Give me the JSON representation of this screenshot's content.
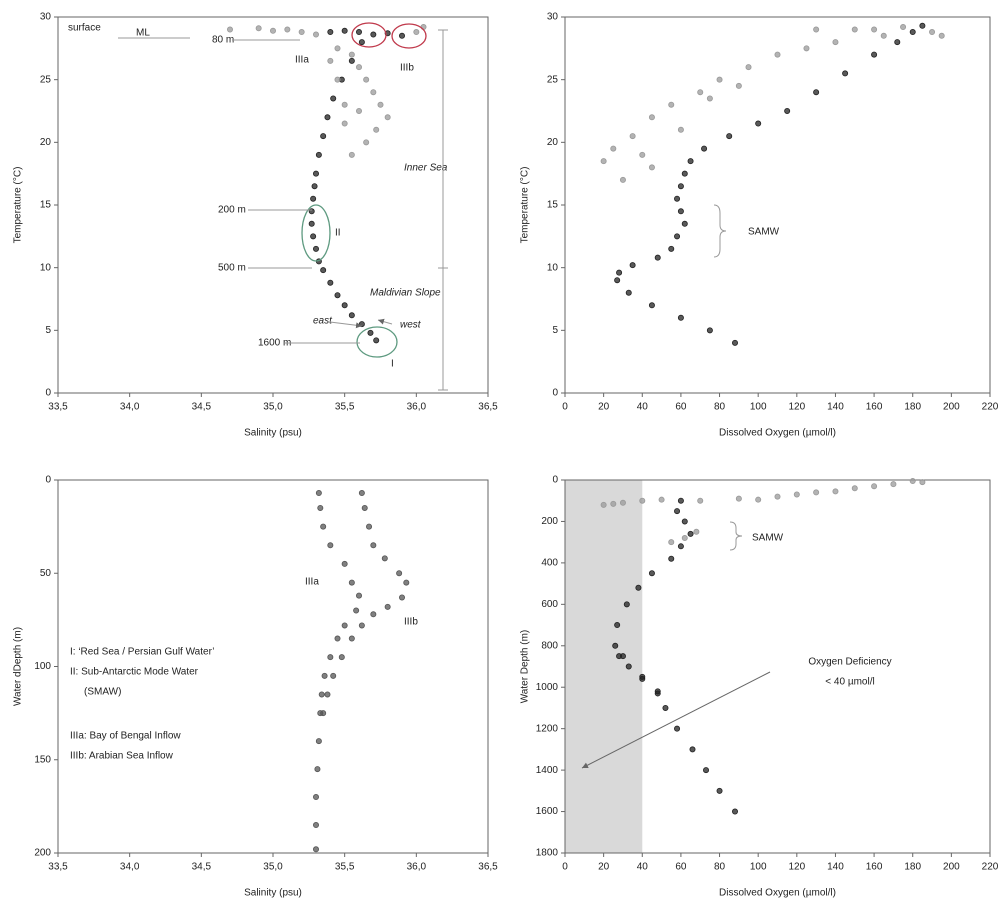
{
  "chart_data": [
    {
      "type": "scatter",
      "x_label": "Salinity (psu)",
      "y_label": "Temperature (°C)",
      "xlim": [
        33.5,
        36.5
      ],
      "ylim": [
        0,
        30
      ],
      "xticks": [
        {
          "value": 33.5,
          "label": "33,5"
        },
        {
          "value": 34,
          "label": "34,0"
        },
        {
          "value": 34.5,
          "label": "34,5"
        },
        {
          "value": 35,
          "label": "35,0"
        },
        {
          "value": 35.5,
          "label": "35,5"
        },
        {
          "value": 36,
          "label": "36,0"
        },
        {
          "value": 36.5,
          "label": "36,5"
        }
      ],
      "yticks": [
        0,
        5,
        10,
        15,
        20,
        25,
        30
      ],
      "y_inverted": false,
      "annotations": [
        "surface",
        "ML",
        "80 m",
        "IIIa",
        "IIIb",
        "Inner Sea",
        "200 m",
        "II",
        "500 m",
        "Maldivian Slope",
        "east",
        "west",
        "1600 m",
        "I"
      ],
      "series": [
        {
          "color": "#222222",
          "x": [
            35.72,
            35.68,
            35.62,
            35.55,
            35.5,
            35.45,
            35.4,
            35.35,
            35.32,
            35.3,
            35.28,
            35.27,
            35.27,
            35.28,
            35.29,
            35.3,
            35.32,
            35.35,
            35.38,
            35.42,
            35.48,
            35.55,
            35.62,
            35.4,
            35.5,
            35.6,
            35.7,
            35.8,
            35.9
          ],
          "y": [
            4.2,
            4.8,
            5.5,
            6.2,
            7,
            7.8,
            8.8,
            9.8,
            10.5,
            11.5,
            12.5,
            13.5,
            14.5,
            15.5,
            16.5,
            17.5,
            19,
            20.5,
            22,
            23.5,
            25,
            26.5,
            28,
            28.8,
            28.9,
            28.8,
            28.6,
            28.7,
            28.5
          ]
        },
        {
          "color": "#999999",
          "x": [
            34.7,
            34.9,
            35.0,
            35.1,
            35.2,
            35.3,
            35.45,
            35.55,
            35.6,
            35.65,
            35.7,
            35.75,
            35.8,
            35.72,
            35.65,
            35.55,
            35.5,
            35.45,
            35.4,
            35.6,
            35.5,
            36.0,
            36.05
          ],
          "y": [
            29,
            29.1,
            28.9,
            29,
            28.8,
            28.6,
            27.5,
            27,
            26,
            25,
            24,
            23,
            22,
            21,
            20,
            19,
            23,
            25,
            26.5,
            22.5,
            21.5,
            28.8,
            29.2
          ]
        }
      ]
    },
    {
      "type": "scatter",
      "x_label": "Dissolved Oxygen (µmol/l)",
      "y_label": "Temperature (°C)",
      "xlim": [
        0,
        220
      ],
      "ylim": [
        0,
        30
      ],
      "xticks": [
        0,
        20,
        40,
        60,
        80,
        100,
        120,
        140,
        160,
        180,
        200,
        220
      ],
      "yticks": [
        0,
        5,
        10,
        15,
        20,
        25,
        30
      ],
      "y_inverted": false,
      "annotations": [
        "SAMW"
      ],
      "series": [
        {
          "color": "#222222",
          "x": [
            88,
            75,
            60,
            45,
            33,
            27,
            28,
            35,
            48,
            55,
            58,
            62,
            60,
            58,
            60,
            62,
            65,
            72,
            85,
            100,
            115,
            130,
            145,
            160,
            172,
            180,
            185
          ],
          "y": [
            4,
            5,
            6,
            7,
            8,
            9,
            9.6,
            10.2,
            10.8,
            11.5,
            12.5,
            13.5,
            14.5,
            15.5,
            16.5,
            17.5,
            18.5,
            19.5,
            20.5,
            21.5,
            22.5,
            24,
            25.5,
            27,
            28,
            28.8,
            29.3
          ]
        },
        {
          "color": "#999999",
          "x": [
            20,
            25,
            35,
            45,
            55,
            60,
            70,
            80,
            95,
            110,
            125,
            140,
            160,
            175,
            190,
            30,
            45,
            75,
            90,
            40,
            130,
            150,
            165,
            195
          ],
          "y": [
            18.5,
            19.5,
            20.5,
            22,
            23,
            21,
            24,
            25,
            26,
            27,
            27.5,
            28,
            29,
            29.2,
            28.8,
            17,
            18,
            23.5,
            24.5,
            19,
            29,
            29,
            28.5,
            28.5
          ]
        }
      ]
    },
    {
      "type": "scatter",
      "x_label": "Salinity (psu)",
      "y_label": "Water dDepth (m)",
      "xlim": [
        33.5,
        36.5
      ],
      "ylim": [
        0,
        200
      ],
      "xticks": [
        {
          "value": 33.5,
          "label": "33,5"
        },
        {
          "value": 34,
          "label": "34,0"
        },
        {
          "value": 34.5,
          "label": "34,5"
        },
        {
          "value": 35,
          "label": "35,0"
        },
        {
          "value": 35.5,
          "label": "35,5"
        },
        {
          "value": 36,
          "label": "36,0"
        },
        {
          "value": 36.5,
          "label": "36,5"
        }
      ],
      "yticks": [
        0,
        50,
        100,
        150,
        200
      ],
      "y_inverted": true,
      "annotations": [
        "IIIa",
        "IIIb",
        "I: ‘Red Sea / Persian Gulf Water’",
        "II: Sub-Antarctic Mode Water",
        "(SMAW)",
        "IIIa: Bay of Bengal Inflow",
        "IIIb: Arabian Sea Inflow"
      ],
      "series": [
        {
          "color": "#555555",
          "x": [
            35.32,
            35.33,
            35.35,
            35.4,
            35.5,
            35.55,
            35.6,
            35.58,
            35.5,
            35.45,
            35.4,
            35.36,
            35.34,
            35.33,
            35.32,
            35.31,
            35.3,
            35.3,
            35.3
          ],
          "y": [
            7,
            15,
            25,
            35,
            45,
            55,
            62,
            70,
            78,
            85,
            95,
            105,
            115,
            125,
            140,
            155,
            170,
            185,
            198
          ]
        },
        {
          "color": "#555555",
          "x": [
            35.62,
            35.64,
            35.67,
            35.7,
            35.78,
            35.88,
            35.93,
            35.9,
            35.8,
            35.7,
            35.62,
            35.55,
            35.48,
            35.42,
            35.38,
            35.35
          ],
          "y": [
            7,
            15,
            25,
            35,
            42,
            50,
            55,
            63,
            68,
            72,
            78,
            85,
            95,
            105,
            115,
            125
          ]
        }
      ]
    },
    {
      "type": "scatter",
      "x_label": "Dissolved Oxygen (µmol/l)",
      "y_label": "Water Depth (m)",
      "xlim": [
        0,
        220
      ],
      "ylim": [
        0,
        1800
      ],
      "xticks": [
        0,
        20,
        40,
        60,
        80,
        100,
        120,
        140,
        160,
        180,
        200,
        220
      ],
      "yticks": [
        0,
        200,
        400,
        600,
        800,
        1000,
        1200,
        1400,
        1600,
        1800
      ],
      "y_inverted": true,
      "shaded_xlim": [
        0,
        40
      ],
      "shade_color": "#d9d9d9",
      "annotations": [
        "SAMW",
        "Oxygen Deficiency",
        "< 40 µmol/l"
      ],
      "series": [
        {
          "color": "#222222",
          "x": [
            60,
            58,
            62,
            65,
            60,
            55,
            45,
            38,
            32,
            27,
            26,
            28,
            33,
            40,
            48,
            52,
            58,
            66,
            73,
            80,
            88,
            30,
            40,
            48
          ],
          "y": [
            100,
            150,
            200,
            260,
            320,
            380,
            450,
            520,
            600,
            700,
            800,
            850,
            900,
            960,
            1030,
            1100,
            1200,
            1300,
            1400,
            1500,
            1600,
            850,
            950,
            1020
          ]
        },
        {
          "color": "#999999",
          "x": [
            20,
            30,
            40,
            50,
            70,
            90,
            110,
            130,
            150,
            170,
            180,
            185,
            55,
            62,
            68,
            25,
            100,
            160,
            140,
            120
          ],
          "y": [
            120,
            110,
            100,
            95,
            100,
            90,
            80,
            60,
            40,
            20,
            5,
            10,
            300,
            280,
            250,
            115,
            95,
            30,
            55,
            70
          ]
        }
      ]
    }
  ]
}
